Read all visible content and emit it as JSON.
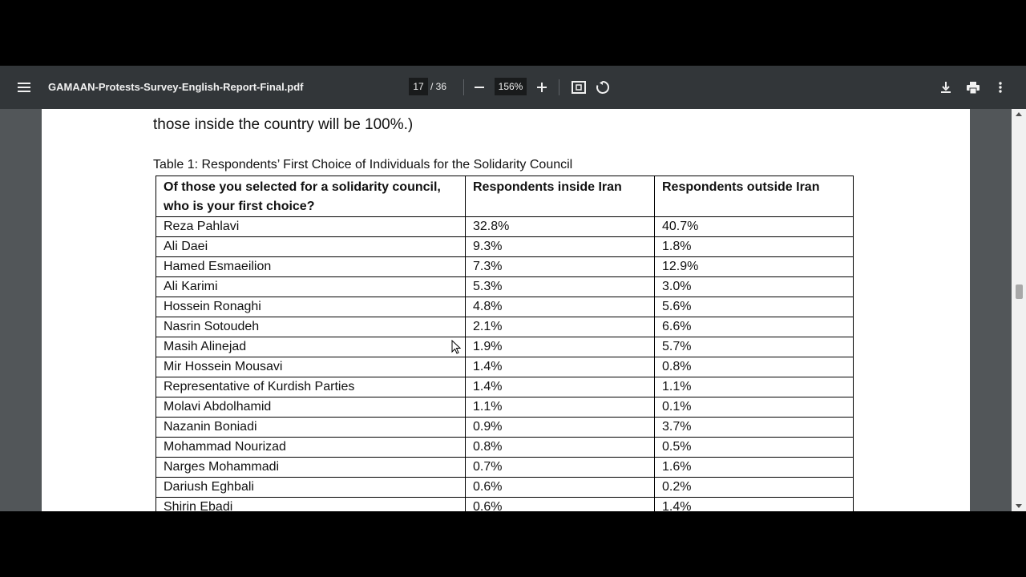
{
  "toolbar": {
    "menu_icon": "hamburger-menu-icon",
    "file_name": "GAMAAN-Protests-Survey-English-Report-Final.pdf",
    "current_page": "17",
    "total_pages": "/ 36",
    "zoom": "156%",
    "icons": [
      "zoom-out-icon",
      "zoom-in-icon",
      "fit-page-icon",
      "rotate-icon",
      "download-icon",
      "print-icon",
      "more-vert-icon"
    ]
  },
  "document": {
    "intro_text": "those inside the country will be 100%.)",
    "table_caption": "Table 1: Respondents’ First Choice of Individuals for the Solidarity Council",
    "table": {
      "headers": [
        "Of those you selected for a solidarity council, who is your first choice?",
        "Respondents inside Iran",
        "Respondents outside Iran"
      ],
      "rows": [
        [
          "Reza Pahlavi",
          "32.8%",
          "40.7%"
        ],
        [
          "Ali Daei",
          "9.3%",
          "1.8%"
        ],
        [
          "Hamed Esmaeilion",
          "7.3%",
          "12.9%"
        ],
        [
          "Ali Karimi",
          "5.3%",
          "3.0%"
        ],
        [
          "Hossein Ronaghi",
          "4.8%",
          "5.6%"
        ],
        [
          "Nasrin Sotoudeh",
          "2.1%",
          "6.6%"
        ],
        [
          "Masih Alinejad",
          "1.9%",
          "5.7%"
        ],
        [
          "Mir Hossein Mousavi",
          "1.4%",
          "0.8%"
        ],
        [
          "Representative of Kurdish Parties",
          "1.4%",
          "1.1%"
        ],
        [
          "Molavi Abdolhamid",
          "1.1%",
          "0.1%"
        ],
        [
          "Nazanin Boniadi",
          "0.9%",
          "3.7%"
        ],
        [
          "Mohammad Nourizad",
          "0.8%",
          "0.5%"
        ],
        [
          "Narges Mohammadi",
          "0.7%",
          "1.6%"
        ],
        [
          "Dariush Eghbali",
          "0.6%",
          "0.2%"
        ],
        [
          "Shirin Ebadi",
          "0.6%",
          "1.4%"
        ]
      ]
    }
  },
  "colors": {
    "toolbar_bg": "#323639",
    "viewer_bg": "#525659",
    "page_bg": "#ffffff"
  }
}
